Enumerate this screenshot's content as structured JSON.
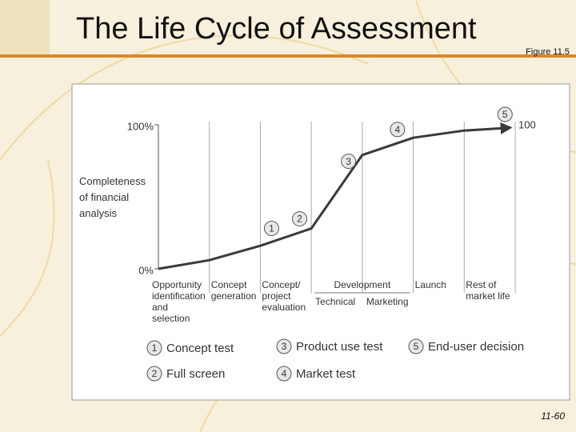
{
  "slide": {
    "title": "The Life Cycle of Assessment",
    "figure": "Figure 11.5",
    "page": "11-60"
  },
  "chart_data": {
    "type": "line",
    "ylabel": "Completeness of financial analysis",
    "ylim": [
      0,
      100
    ],
    "yticks": [
      {
        "value": 0,
        "label": "0%"
      },
      {
        "value": 100,
        "label": "100%"
      }
    ],
    "xlim": [
      0,
      7
    ],
    "end_label": "100",
    "stages": [
      {
        "label": "Opportunity identification and selection"
      },
      {
        "label": "Concept generation"
      },
      {
        "label": "Concept/ project evaluation"
      },
      {
        "label": "Development",
        "parts": [
          "Technical",
          "Marketing"
        ]
      },
      {
        "label": "Launch"
      },
      {
        "label": "Rest of market life"
      }
    ],
    "series": [
      {
        "name": "Completeness",
        "color": "#3a3a3a",
        "x": [
          0,
          1,
          2,
          3,
          4,
          5,
          6,
          6.9
        ],
        "values": [
          0,
          6,
          16,
          28,
          79,
          91,
          96,
          98
        ]
      }
    ],
    "milestones": [
      {
        "number": 1,
        "label": "Concept test",
        "x": 2.22
      },
      {
        "number": 2,
        "label": "Full screen",
        "x": 2.77
      },
      {
        "number": 3,
        "label": "Product use test",
        "x": 3.73
      },
      {
        "number": 4,
        "label": "Market test",
        "x": 4.69
      },
      {
        "number": 5,
        "label": "End-user decision",
        "x": 6.8
      }
    ]
  }
}
